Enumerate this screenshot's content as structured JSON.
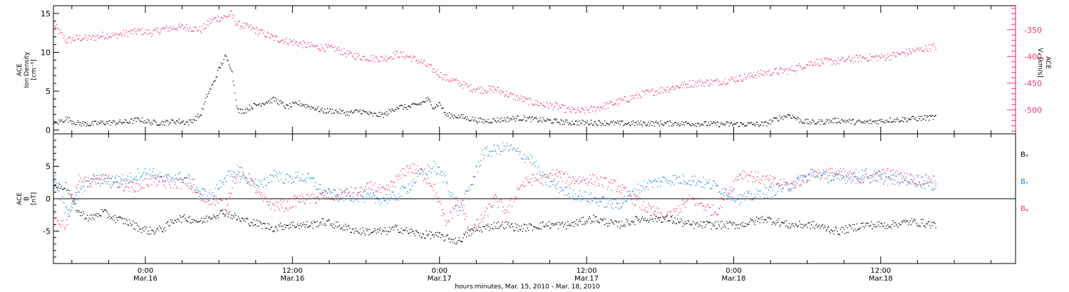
{
  "chart_data": [
    {
      "type": "scatter",
      "title": "",
      "time_axis": {
        "start": "2010-03-15 16:30",
        "end": "2010-03-18 23:00",
        "major_ticks": [
          {
            "time": "0:00",
            "date": "Mar.16",
            "hours": 7.5
          },
          {
            "time": "12:00",
            "date": "Mar.16",
            "hours": 19.5
          },
          {
            "time": "0:00",
            "date": "Mar.17",
            "hours": 31.5
          },
          {
            "time": "12:00",
            "date": "Mar.17",
            "hours": 43.5
          },
          {
            "time": "0:00",
            "date": "Mar.18",
            "hours": 55.5
          },
          {
            "time": "12:00",
            "date": "Mar.18",
            "hours": 67.5
          }
        ],
        "xlabel": "hours:minutes, Mar. 15, 2010 - Mar. 18, 2010",
        "xlim_hours": [
          0,
          78.5
        ]
      },
      "panels": [
        {
          "name": "ion-density-panel",
          "ylabel_lines": [
            "ACE",
            "Ion Density",
            "[cm⁻³]"
          ],
          "ylim": [
            -0.5,
            16
          ],
          "yticks": [
            0,
            5,
            10,
            15
          ],
          "right_axis": {
            "ylabel_lines": [
              "ACE",
              "Vₓ [km/s]"
            ],
            "ylim": [
              -545,
              -305
            ],
            "yticks": [
              -350,
              -400,
              -450,
              -500
            ],
            "color": "#e83a6a"
          },
          "series": [
            {
              "axis": "left",
              "color": "#000000",
              "anchors_hours": [
                0,
                1,
                2,
                3,
                4,
                5,
                6,
                7,
                8,
                9,
                10,
                11,
                12,
                12.5,
                13,
                13.5,
                14,
                14.5,
                15,
                15.5,
                16,
                17,
                18,
                19,
                20,
                21,
                22,
                23,
                24,
                25,
                26,
                27,
                28,
                29,
                30,
                30.5,
                31,
                31.5,
                32,
                33,
                34,
                35,
                36,
                38,
                40,
                42,
                44,
                46,
                48,
                50,
                52,
                54,
                56,
                58,
                59,
                60,
                61,
                62,
                64,
                66,
                68,
                70,
                72
              ],
              "values": [
                0.8,
                1.5,
                0.9,
                0.8,
                1.0,
                1.0,
                1.1,
                1.4,
                1.0,
                1.0,
                1.2,
                1.0,
                2.0,
                4.5,
                6.0,
                8.0,
                9.5,
                8.0,
                2.5,
                2.5,
                3.0,
                3.5,
                4.0,
                3.0,
                3.5,
                3.0,
                2.5,
                2.5,
                2.2,
                2.5,
                2.0,
                2.0,
                3.0,
                3.0,
                3.5,
                4.0,
                3.0,
                3.5,
                2.0,
                1.8,
                1.5,
                1.2,
                1.3,
                1.6,
                1.3,
                1.0,
                1.0,
                0.9,
                0.9,
                0.9,
                0.9,
                0.8,
                0.8,
                0.8,
                1.5,
                2.0,
                1.2,
                1.0,
                1.3,
                1.0,
                1.3,
                1.5,
                1.7
              ]
            },
            {
              "axis": "right",
              "color": "#e83a6a",
              "anchors_hours": [
                0,
                1,
                2,
                3,
                4,
                5,
                6,
                7,
                8,
                9,
                10,
                11,
                12,
                13,
                14,
                14.5,
                15,
                16,
                17,
                18,
                19,
                20,
                21,
                22,
                23,
                24,
                25,
                26,
                27,
                28,
                29,
                30,
                31,
                32,
                33,
                34,
                35,
                36,
                37,
                38,
                39,
                40,
                41,
                42,
                43,
                44,
                46,
                48,
                50,
                52,
                54,
                56,
                58,
                60,
                62,
                64,
                66,
                68,
                70,
                72
              ],
              "values": [
                -340,
                -370,
                -365,
                -365,
                -360,
                -360,
                -355,
                -352,
                -355,
                -348,
                -345,
                -345,
                -350,
                -330,
                -325,
                -320,
                -340,
                -345,
                -355,
                -365,
                -370,
                -375,
                -380,
                -383,
                -385,
                -395,
                -400,
                -403,
                -403,
                -395,
                -400,
                -410,
                -425,
                -440,
                -448,
                -458,
                -462,
                -460,
                -470,
                -478,
                -485,
                -490,
                -492,
                -500,
                -502,
                -498,
                -485,
                -470,
                -460,
                -450,
                -447,
                -440,
                -430,
                -425,
                -410,
                -408,
                -402,
                -400,
                -390,
                -380
              ]
            }
          ]
        },
        {
          "name": "magnetic-field-panel",
          "ylabel_lines": [
            "ACE",
            "B",
            "[nT]"
          ],
          "ylim": [
            -10,
            10
          ],
          "yticks": [
            -5,
            0,
            5
          ],
          "zero_line": true,
          "legend_placement": "right",
          "series": [
            {
              "name": "Bₓ",
              "color": "#000000",
              "anchors_hours": [
                0,
                1,
                1.5,
                2,
                3,
                4,
                5,
                6,
                7,
                8,
                9,
                10,
                11,
                12,
                13,
                14,
                15,
                16,
                17,
                18,
                19,
                20,
                21,
                22,
                23,
                24,
                25,
                26,
                27,
                28,
                29,
                30,
                31,
                32,
                33,
                34,
                35,
                36,
                37,
                38,
                40,
                42,
                44,
                46,
                48,
                50,
                52,
                54,
                56,
                58,
                60,
                62,
                64,
                66,
                68,
                70,
                72
              ],
              "values": [
                2,
                2,
                0,
                -2,
                -3,
                -2,
                -3,
                -3.5,
                -4.5,
                -5,
                -4.5,
                -3,
                -3,
                -3.5,
                -2.5,
                -2,
                -3,
                -3.5,
                -4,
                -4.5,
                -4,
                -4,
                -4,
                -3.5,
                -4,
                -4.5,
                -5,
                -5,
                -5,
                -4.5,
                -5,
                -5.5,
                -5.5,
                -6,
                -6.5,
                -5,
                -4.5,
                -4,
                -4,
                -4.5,
                -4,
                -4,
                -3,
                -4,
                -3,
                -3,
                -4,
                -4,
                -4,
                -3,
                -4,
                -4,
                -5,
                -4,
                -4,
                -3.5,
                -4
              ]
            },
            {
              "name": "Bᵧ",
              "color": "#1e88e0",
              "anchors_hours": [
                0,
                1,
                2,
                3,
                4,
                5,
                6,
                7,
                8,
                9,
                10,
                11,
                12,
                13,
                14,
                15,
                16,
                17,
                18,
                19,
                20,
                21,
                22,
                23,
                24,
                25,
                26,
                27,
                28,
                29,
                30,
                31,
                32,
                33,
                34,
                35,
                36,
                37,
                38,
                39,
                40,
                41,
                42,
                44,
                46,
                48,
                50,
                52,
                54,
                56,
                58,
                60,
                62,
                64,
                66,
                68,
                70,
                72
              ],
              "values": [
                3.5,
                -2,
                0.5,
                3,
                3,
                3,
                3,
                4,
                4,
                3,
                3.5,
                3,
                1,
                0.5,
                3.5,
                3.5,
                3,
                2,
                4,
                3,
                3.5,
                3,
                1,
                0.5,
                0.5,
                0.5,
                0,
                0,
                0.5,
                2,
                4,
                5,
                3,
                -2,
                2,
                7,
                7.5,
                8,
                7,
                6,
                3,
                2,
                1,
                0,
                -1,
                2,
                3,
                3,
                2,
                0,
                1,
                2,
                4,
                3,
                4,
                3,
                3,
                2
              ]
            },
            {
              "name": "Bᵩ",
              "color": "#e83a6a",
              "anchors_hours": [
                0,
                1,
                2,
                3,
                4,
                5,
                6,
                7,
                8,
                9,
                10,
                11,
                12,
                13,
                14,
                15,
                16,
                17,
                18,
                19,
                20,
                21,
                22,
                23,
                24,
                25,
                26,
                27,
                28,
                29,
                30,
                31,
                32,
                33,
                34,
                35,
                36,
                37,
                38,
                39,
                40,
                41,
                42,
                44,
                46,
                48,
                50,
                52,
                54,
                56,
                58,
                60,
                62,
                64,
                66,
                68,
                70,
                72
              ],
              "values": [
                -3,
                -4,
                3,
                2.5,
                3,
                2.5,
                2,
                2,
                3,
                2.5,
                2.5,
                2.5,
                0,
                0,
                -1,
                4.5,
                3,
                0,
                -1,
                -1,
                0,
                0,
                0.5,
                0.5,
                1,
                1,
                2,
                1,
                3,
                5,
                4,
                2,
                -4,
                0,
                -5,
                -3,
                0,
                -2,
                2,
                3,
                3,
                4,
                3,
                3,
                2,
                -1,
                -3,
                0,
                -2,
                4,
                3,
                2,
                4,
                4,
                3,
                4,
                3,
                3
              ]
            }
          ]
        }
      ]
    }
  ]
}
